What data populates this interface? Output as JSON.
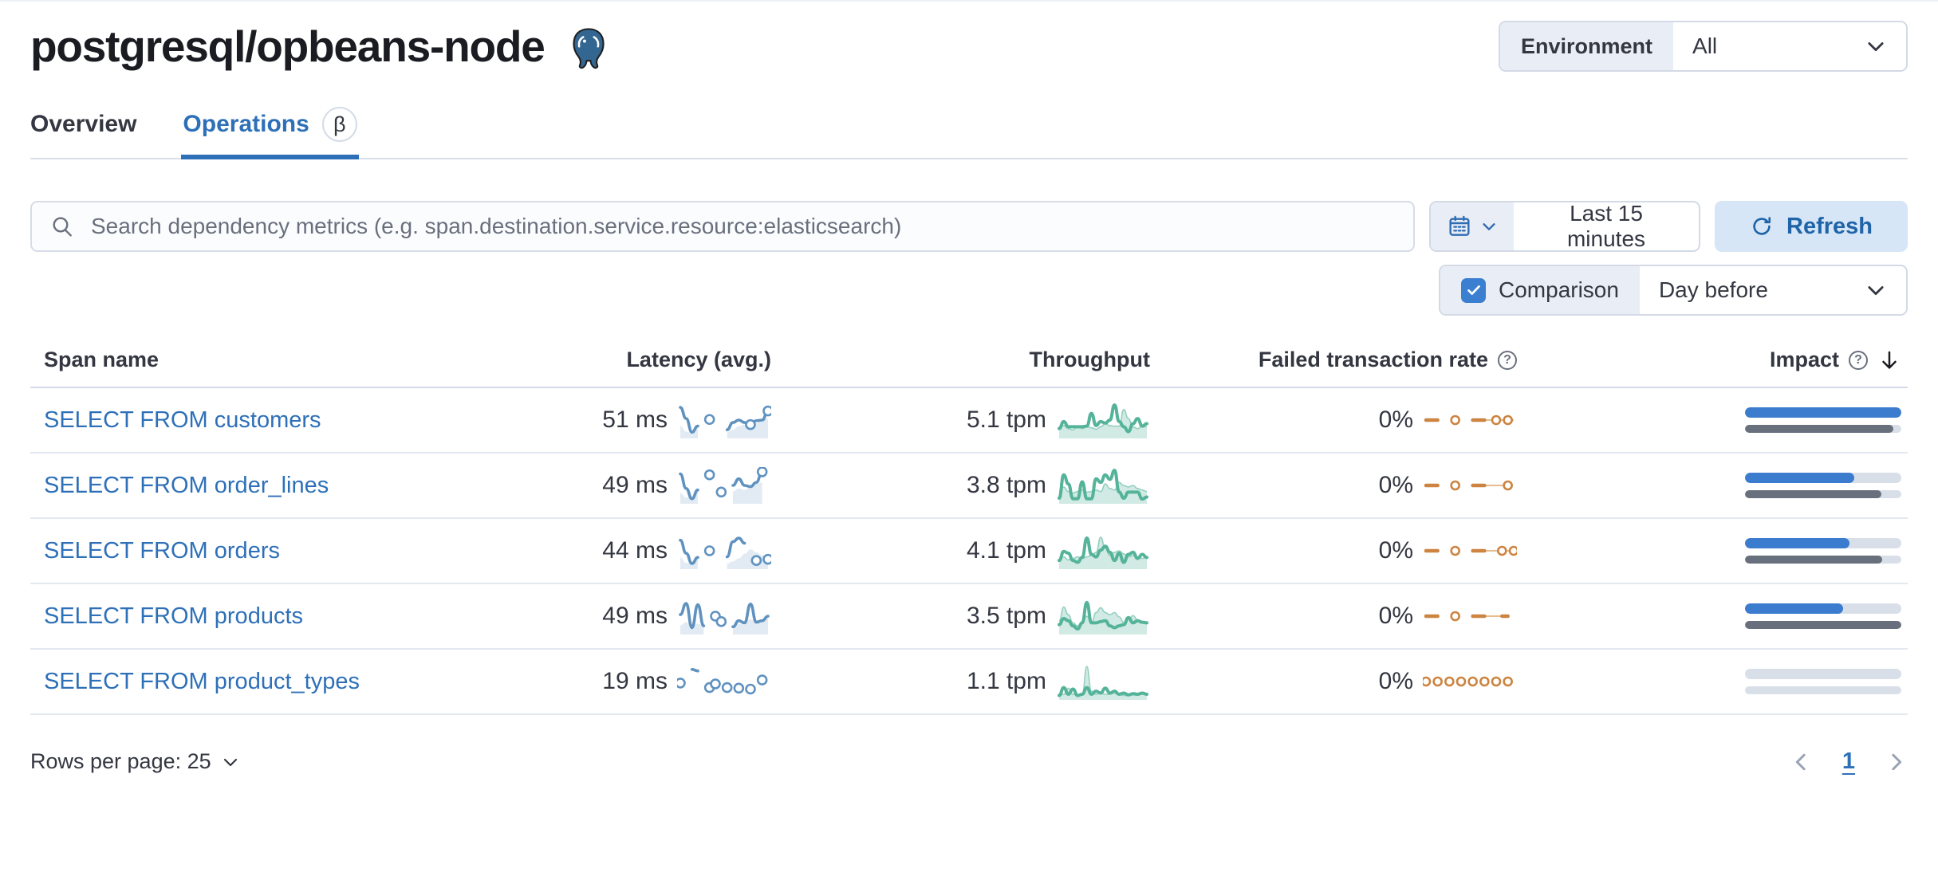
{
  "page": {
    "title": "postgresql/opbeans-node"
  },
  "environment": {
    "label": "Environment",
    "value": "All"
  },
  "tabs": [
    {
      "label": "Overview",
      "active": false
    },
    {
      "label": "Operations",
      "active": true,
      "beta": "β"
    }
  ],
  "search": {
    "placeholder": "Search dependency metrics (e.g. span.destination.service.resource:elasticsearch)"
  },
  "time_picker": {
    "value": "Last 15 minutes"
  },
  "refresh": {
    "label": "Refresh"
  },
  "comparison": {
    "label": "Comparison",
    "checked": true,
    "value": "Day before"
  },
  "table": {
    "columns": [
      "Span name",
      "Latency (avg.)",
      "Throughput",
      "Failed transaction rate",
      "Impact"
    ],
    "rows": [
      {
        "span_name": "SELECT FROM customers",
        "latency": "51 ms",
        "throughput": "5.1 tpm",
        "failed_rate": "0%",
        "impact": 100,
        "impact_prev": 95,
        "latency_spark": {
          "values": [
            0.92,
            0.55,
            0.1,
            0.3,
            null,
            0.52,
            null,
            null,
            0.18,
            0.42,
            0.5,
            0.42,
            0.35,
            0.48,
            0.5,
            0.8
          ],
          "dots": [
            5,
            12,
            15
          ],
          "comp": [
            0.3,
            0.12,
            0.08,
            0.22,
            null,
            null,
            null,
            null,
            0.1,
            0.18,
            0.3,
            0.35,
            0.28,
            0.4,
            0.52,
            0.55
          ]
        },
        "throughput_spark": {
          "values": [
            0.22,
            0.45,
            0.28,
            0.28,
            0.28,
            0.28,
            0.3,
            0.72,
            0.32,
            0.45,
            0.4,
            0.5,
            1.0,
            0.45,
            0.28,
            0.12,
            0.38,
            0.55,
            0.3,
            0.38
          ],
          "comp": [
            0.28,
            0.32,
            0.22,
            0.18,
            0.3,
            0.22,
            0.28,
            0.25,
            0.2,
            0.28,
            0.38,
            0.32,
            0.3,
            0.3,
            0.85,
            0.55,
            0.28,
            0.22,
            0.3,
            0.28
          ]
        },
        "failed_spark": {
          "values": [
            0.5,
            0.5,
            0.5,
            null,
            null,
            0.5,
            null,
            null,
            0.5,
            0.5,
            0.5,
            null,
            0.5,
            null,
            0.5,
            null
          ],
          "dots": [
            5,
            12,
            14
          ],
          "comp": [
            null,
            null,
            null,
            null,
            null,
            null,
            null,
            null,
            null,
            null,
            0.5,
            0.5,
            0.5,
            0.5,
            0.5,
            0.5
          ]
        }
      },
      {
        "span_name": "SELECT FROM order_lines",
        "latency": "49 ms",
        "throughput": "3.8 tpm",
        "failed_rate": "0%",
        "impact": 70,
        "impact_prev": 87,
        "latency_spark": {
          "values": [
            0.88,
            0.4,
            0.06,
            0.35,
            null,
            0.85,
            null,
            0.28,
            null,
            0.5,
            0.72,
            0.5,
            0.46,
            0.6,
            0.95,
            null
          ],
          "dots": [
            5,
            7,
            14
          ],
          "comp": [
            0.25,
            0.1,
            0.12,
            0.3,
            null,
            null,
            null,
            null,
            null,
            0.3,
            0.4,
            0.35,
            0.45,
            0.55,
            0.6,
            null
          ]
        },
        "throughput_spark": {
          "values": [
            0.08,
            0.85,
            0.55,
            0.06,
            0.06,
            0.62,
            0.06,
            0.06,
            0.72,
            0.6,
            0.85,
            0.7,
            1.0,
            0.28,
            0.08,
            0.28,
            0.28,
            0.28,
            0.05,
            0.12
          ],
          "comp": [
            0.3,
            0.45,
            0.3,
            0.25,
            0.3,
            0.35,
            0.28,
            0.3,
            0.35,
            0.3,
            0.55,
            0.4,
            0.35,
            0.6,
            0.5,
            0.45,
            0.5,
            0.4,
            0.35,
            0.3
          ]
        },
        "failed_spark": {
          "values": [
            0.5,
            0.5,
            0.5,
            null,
            null,
            0.5,
            null,
            null,
            0.5,
            0.5,
            0.5,
            null,
            null,
            null,
            0.5,
            null
          ],
          "dots": [
            5,
            14
          ],
          "comp": [
            null,
            null,
            null,
            null,
            null,
            null,
            null,
            null,
            null,
            null,
            0.5,
            0.5,
            0.5,
            0.5,
            0.5,
            null
          ]
        }
      },
      {
        "span_name": "SELECT FROM orders",
        "latency": "44 ms",
        "throughput": "4.1 tpm",
        "failed_rate": "0%",
        "impact": 67,
        "impact_prev": 88,
        "latency_spark": {
          "values": [
            0.85,
            0.42,
            0.08,
            0.28,
            null,
            0.5,
            null,
            null,
            0.3,
            0.8,
            0.92,
            0.75,
            null,
            0.18,
            null,
            0.22
          ],
          "dots": [
            5,
            13,
            15
          ],
          "comp": [
            0.28,
            0.1,
            0.1,
            0.25,
            null,
            null,
            null,
            null,
            0.08,
            0.15,
            0.25,
            0.4,
            0.55,
            0.45,
            0.35,
            0.3
          ]
        },
        "throughput_spark": {
          "values": [
            0.18,
            0.48,
            0.42,
            0.18,
            0.12,
            0.28,
            0.92,
            0.38,
            0.3,
            0.52,
            0.65,
            0.45,
            0.18,
            0.42,
            0.12,
            0.38,
            0.45,
            0.25,
            0.38,
            0.28
          ],
          "comp": [
            0.25,
            0.3,
            0.2,
            0.25,
            0.3,
            0.25,
            0.3,
            0.35,
            0.45,
            0.95,
            0.6,
            0.35,
            0.45,
            0.5,
            0.4,
            0.3,
            0.35,
            0.3,
            0.25,
            0.3
          ]
        },
        "failed_spark": {
          "values": [
            0.5,
            0.5,
            0.5,
            null,
            null,
            0.5,
            null,
            null,
            0.5,
            0.5,
            0.5,
            null,
            null,
            0.5,
            null,
            0.5
          ],
          "dots": [
            5,
            13,
            15
          ],
          "comp": [
            null,
            null,
            null,
            null,
            null,
            null,
            null,
            null,
            null,
            null,
            0.5,
            0.5,
            0.5,
            0.5,
            0.5,
            0.5
          ]
        }
      },
      {
        "span_name": "SELECT FROM products",
        "latency": "49 ms",
        "throughput": "3.5 tpm",
        "failed_rate": "0%",
        "impact": 63,
        "impact_prev": 100,
        "latency_spark": {
          "values": [
            0.55,
            0.92,
            0.12,
            0.88,
            0.18,
            null,
            0.5,
            0.32,
            null,
            0.15,
            0.35,
            0.28,
            0.9,
            0.3,
            0.35,
            0.5
          ],
          "dots": [
            6,
            7
          ],
          "comp": [
            0.2,
            0.3,
            0.15,
            0.25,
            0.2,
            null,
            null,
            null,
            null,
            0.1,
            0.25,
            0.3,
            0.4,
            0.3,
            0.35,
            0.45
          ]
        },
        "throughput_spark": {
          "values": [
            0.22,
            0.42,
            0.35,
            0.18,
            0.08,
            0.28,
            0.95,
            0.28,
            0.28,
            0.32,
            0.35,
            0.18,
            0.12,
            0.18,
            0.22,
            0.45,
            0.28,
            0.35,
            0.3,
            0.28
          ],
          "comp": [
            0.35,
            0.8,
            0.55,
            0.28,
            0.18,
            0.28,
            0.5,
            0.3,
            0.62,
            0.78,
            0.62,
            0.55,
            0.62,
            0.48,
            0.3,
            0.4,
            0.52,
            0.38,
            0.3,
            0.28
          ]
        },
        "failed_spark": {
          "values": [
            0.5,
            0.5,
            0.5,
            null,
            null,
            0.5,
            null,
            null,
            0.5,
            0.5,
            0.5,
            null,
            null,
            0.5,
            0.5,
            null
          ],
          "dots": [
            5
          ],
          "comp": [
            null,
            null,
            null,
            null,
            null,
            null,
            null,
            null,
            null,
            0.5,
            0.5,
            0.5,
            0.5,
            0.5,
            null,
            null
          ]
        }
      },
      {
        "span_name": "SELECT FROM product_types",
        "latency": "19 ms",
        "throughput": "1.1 tpm",
        "failed_rate": "0%",
        "impact": 0,
        "impact_prev": 0,
        "latency_spark": {
          "values": [
            0.45,
            null,
            0.9,
            0.85,
            null,
            0.3,
            0.42,
            null,
            0.3,
            null,
            0.28,
            null,
            0.25,
            null,
            0.55,
            null
          ],
          "dots": [
            0,
            5,
            6,
            8,
            10,
            12,
            14
          ],
          "comp": [
            null,
            null,
            null,
            null,
            null,
            null,
            null,
            null,
            null,
            null,
            null,
            null,
            null,
            null,
            null,
            null
          ]
        },
        "throughput_spark": {
          "values": [
            0.04,
            0.3,
            0.08,
            0.25,
            0.04,
            0.08,
            0.3,
            0.08,
            0.18,
            0.12,
            0.28,
            0.12,
            0.18,
            0.08,
            0.12,
            0.06,
            0.1,
            0.08,
            0.12,
            0.08
          ],
          "comp": [
            0.04,
            0.08,
            0.28,
            0.08,
            0.04,
            0.08,
            1.0,
            0.18,
            0.08,
            0.12,
            0.08,
            0.08,
            0.12,
            0.08,
            0.04,
            0.04,
            0.06,
            0.05,
            0.08,
            0.06
          ]
        },
        "failed_spark": {
          "values": [
            0.5,
            null,
            0.5,
            null,
            0.5,
            null,
            0.5,
            null,
            0.5,
            null,
            0.5,
            null,
            0.5,
            null,
            0.5,
            null
          ],
          "dots": [
            0,
            2,
            4,
            6,
            8,
            10,
            12,
            14
          ],
          "comp": [
            null,
            null,
            null,
            null,
            null,
            null,
            null,
            null,
            null,
            null,
            null,
            null,
            null,
            null,
            null,
            null
          ]
        }
      }
    ]
  },
  "pagination": {
    "rows_per_page_label": "Rows per page: 25",
    "page": "1"
  },
  "colors": {
    "accent_blue": "#2e70b8",
    "latency_spark": "#6092c0",
    "latency_comp_fill": "rgba(96,146,192,0.18)",
    "throughput_spark": "#54b399",
    "throughput_comp_fill": "rgba(84,179,153,0.27)",
    "throughput_comp_line": "rgba(84,179,153,0.55)",
    "failed_spark": "#cc8440",
    "failed_comp_line": "#e5bd8f",
    "impact_bar": "#3b7cce",
    "impact_prev_bar": "#69707d"
  }
}
